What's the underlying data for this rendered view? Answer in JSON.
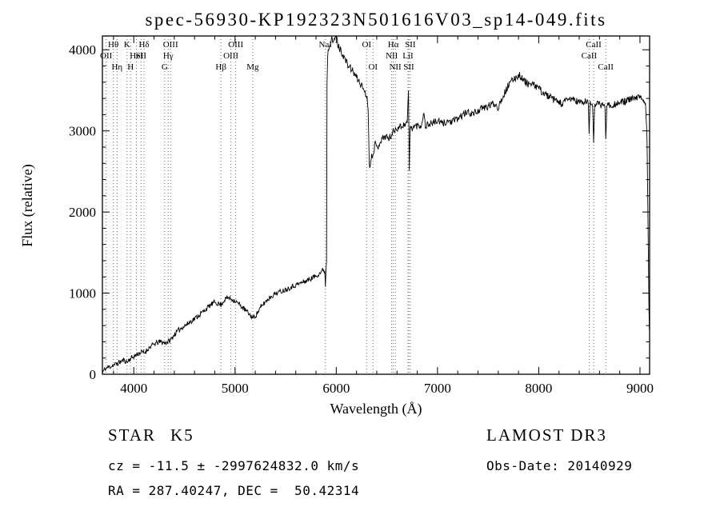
{
  "title": "spec-56930-KP192323N501616V03_sp14-049.fits",
  "chart_data": {
    "type": "line",
    "title": "spec-56930-KP192323N501616V03_sp14-049.fits",
    "xlabel": "Wavelength (Å)",
    "ylabel": "Flux (relative)",
    "xlim": [
      3690,
      9095
    ],
    "ylim": [
      0,
      4170
    ],
    "xticks": [
      4000,
      5000,
      6000,
      7000,
      8000,
      9000
    ],
    "yticks": [
      0,
      1000,
      2000,
      3000,
      4000
    ],
    "x_minor_step": 200,
    "y_minor_step": 200,
    "grid": false,
    "legend": "none",
    "series_color": "#000000",
    "line_marker_color": "#b5524a",
    "spectral_lines": [
      {
        "label": "OII",
        "wavelength": 3727,
        "row": 2
      },
      {
        "label": "Hθ",
        "wavelength": 3798,
        "row": 1
      },
      {
        "label": "Hη",
        "wavelength": 3835,
        "row": 3
      },
      {
        "label": "K",
        "wavelength": 3933,
        "row": 1
      },
      {
        "label": "H",
        "wavelength": 3968,
        "row": 3
      },
      {
        "label": "HeI",
        "wavelength": 4026,
        "row": 2
      },
      {
        "label": "SII",
        "wavelength": 4072,
        "row": 2
      },
      {
        "label": "Hδ",
        "wavelength": 4101,
        "row": 1
      },
      {
        "label": "G",
        "wavelength": 4305,
        "row": 3
      },
      {
        "label": "Hγ",
        "wavelength": 4340,
        "row": 2
      },
      {
        "label": "OIII",
        "wavelength": 4363,
        "row": 1
      },
      {
        "label": "Hβ",
        "wavelength": 4861,
        "row": 3
      },
      {
        "label": "OIII",
        "wavelength": 4959,
        "row": 2
      },
      {
        "label": "OIII",
        "wavelength": 5007,
        "row": 1
      },
      {
        "label": "Mg",
        "wavelength": 5175,
        "row": 3
      },
      {
        "label": "NaI",
        "wavelength": 5893,
        "row": 1
      },
      {
        "label": "OI",
        "wavelength": 6300,
        "row": 1
      },
      {
        "label": "OI",
        "wavelength": 6363,
        "row": 3
      },
      {
        "label": "NII",
        "wavelength": 6548,
        "row": 2
      },
      {
        "label": "Hα",
        "wavelength": 6563,
        "row": 1
      },
      {
        "label": "NII",
        "wavelength": 6583,
        "row": 3
      },
      {
        "label": "LiI",
        "wavelength": 6708,
        "row": 2
      },
      {
        "label": "SII",
        "wavelength": 6716,
        "row": 3
      },
      {
        "label": "SII",
        "wavelength": 6731,
        "row": 1
      },
      {
        "label": "CaII",
        "wavelength": 8498,
        "row": 2
      },
      {
        "label": "CaII",
        "wavelength": 8542,
        "row": 1
      },
      {
        "label": "CaII",
        "wavelength": 8662,
        "row": 3
      }
    ],
    "spectrum_anchors": [
      [
        3690,
        15
      ],
      [
        3700,
        40
      ],
      [
        3720,
        70
      ],
      [
        3750,
        90
      ],
      [
        3780,
        100
      ],
      [
        3800,
        115
      ],
      [
        3830,
        125
      ],
      [
        3860,
        150
      ],
      [
        3900,
        175
      ],
      [
        3933,
        150
      ],
      [
        3950,
        175
      ],
      [
        3970,
        195
      ],
      [
        4000,
        220
      ],
      [
        4030,
        245
      ],
      [
        4060,
        265
      ],
      [
        4090,
        275
      ],
      [
        4101,
        255
      ],
      [
        4130,
        300
      ],
      [
        4160,
        335
      ],
      [
        4200,
        370
      ],
      [
        4240,
        395
      ],
      [
        4270,
        400
      ],
      [
        4305,
        385
      ],
      [
        4340,
        405
      ],
      [
        4363,
        420
      ],
      [
        4400,
        490
      ],
      [
        4440,
        540
      ],
      [
        4480,
        580
      ],
      [
        4520,
        610
      ],
      [
        4560,
        650
      ],
      [
        4600,
        685
      ],
      [
        4650,
        735
      ],
      [
        4700,
        790
      ],
      [
        4750,
        845
      ],
      [
        4800,
        890
      ],
      [
        4861,
        855
      ],
      [
        4900,
        925
      ],
      [
        4930,
        945
      ],
      [
        4960,
        930
      ],
      [
        5000,
        905
      ],
      [
        5040,
        865
      ],
      [
        5080,
        815
      ],
      [
        5120,
        770
      ],
      [
        5160,
        715
      ],
      [
        5180,
        695
      ],
      [
        5210,
        735
      ],
      [
        5250,
        815
      ],
      [
        5300,
        895
      ],
      [
        5350,
        955
      ],
      [
        5400,
        995
      ],
      [
        5450,
        1020
      ],
      [
        5500,
        1045
      ],
      [
        5550,
        1075
      ],
      [
        5600,
        1100
      ],
      [
        5650,
        1125
      ],
      [
        5700,
        1150
      ],
      [
        5750,
        1180
      ],
      [
        5800,
        1215
      ],
      [
        5845,
        1255
      ],
      [
        5875,
        1295
      ],
      [
        5887,
        1260
      ],
      [
        5893,
        1090
      ],
      [
        5899,
        1320
      ],
      [
        5904,
        1380
      ],
      [
        5909,
        3600
      ],
      [
        5915,
        3950
      ],
      [
        5925,
        4020
      ],
      [
        5940,
        4100
      ],
      [
        5955,
        4180
      ],
      [
        5970,
        4060
      ],
      [
        5985,
        4150
      ],
      [
        6000,
        4220
      ],
      [
        6015,
        4060
      ],
      [
        6030,
        4020
      ],
      [
        6050,
        3980
      ],
      [
        6080,
        3900
      ],
      [
        6110,
        3820
      ],
      [
        6150,
        3760
      ],
      [
        6190,
        3680
      ],
      [
        6230,
        3600
      ],
      [
        6270,
        3520
      ],
      [
        6300,
        3430
      ],
      [
        6315,
        3300
      ],
      [
        6325,
        2650
      ],
      [
        6335,
        2530
      ],
      [
        6345,
        2680
      ],
      [
        6365,
        2740
      ],
      [
        6385,
        2840
      ],
      [
        6405,
        2790
      ],
      [
        6430,
        2860
      ],
      [
        6460,
        2910
      ],
      [
        6490,
        2940
      ],
      [
        6520,
        2900
      ],
      [
        6545,
        2950
      ],
      [
        6563,
        2990
      ],
      [
        6590,
        3030
      ],
      [
        6620,
        3050
      ],
      [
        6650,
        3060
      ],
      [
        6680,
        3090
      ],
      [
        6700,
        3100
      ],
      [
        6708,
        3300
      ],
      [
        6713,
        3530
      ],
      [
        6721,
        2520
      ],
      [
        6729,
        3030
      ],
      [
        6750,
        3040
      ],
      [
        6780,
        3060
      ],
      [
        6810,
        3070
      ],
      [
        6840,
        3060
      ],
      [
        6862,
        3230
      ],
      [
        6880,
        3070
      ],
      [
        6910,
        3080
      ],
      [
        6950,
        3100
      ],
      [
        7000,
        3120
      ],
      [
        7050,
        3090
      ],
      [
        7100,
        3120
      ],
      [
        7150,
        3110
      ],
      [
        7200,
        3150
      ],
      [
        7250,
        3200
      ],
      [
        7300,
        3230
      ],
      [
        7350,
        3210
      ],
      [
        7400,
        3250
      ],
      [
        7450,
        3280
      ],
      [
        7500,
        3300
      ],
      [
        7550,
        3340
      ],
      [
        7590,
        3310
      ],
      [
        7600,
        3280
      ],
      [
        7620,
        3360
      ],
      [
        7660,
        3460
      ],
      [
        7700,
        3560
      ],
      [
        7740,
        3620
      ],
      [
        7780,
        3670
      ],
      [
        7810,
        3690
      ],
      [
        7840,
        3640
      ],
      [
        7880,
        3590
      ],
      [
        7920,
        3570
      ],
      [
        7960,
        3560
      ],
      [
        8000,
        3530
      ],
      [
        8040,
        3470
      ],
      [
        8090,
        3430
      ],
      [
        8140,
        3390
      ],
      [
        8190,
        3360
      ],
      [
        8230,
        3330
      ],
      [
        8280,
        3380
      ],
      [
        8330,
        3400
      ],
      [
        8380,
        3360
      ],
      [
        8430,
        3350
      ],
      [
        8470,
        3360
      ],
      [
        8490,
        3350
      ],
      [
        8498,
        2980
      ],
      [
        8508,
        3340
      ],
      [
        8532,
        3330
      ],
      [
        8542,
        2890
      ],
      [
        8552,
        3320
      ],
      [
        8590,
        3330
      ],
      [
        8630,
        3320
      ],
      [
        8654,
        3330
      ],
      [
        8662,
        2860
      ],
      [
        8672,
        3320
      ],
      [
        8710,
        3320
      ],
      [
        8750,
        3330
      ],
      [
        8800,
        3345
      ],
      [
        8850,
        3365
      ],
      [
        8900,
        3385
      ],
      [
        8950,
        3400
      ],
      [
        9000,
        3415
      ],
      [
        9030,
        3390
      ],
      [
        9055,
        3330
      ],
      [
        9070,
        2900
      ],
      [
        9080,
        1800
      ],
      [
        9088,
        900
      ],
      [
        9093,
        550
      ]
    ],
    "noise_segments": [
      {
        "from": 3690,
        "to": 5904,
        "amp": 32
      },
      {
        "from": 5904,
        "to": 9000,
        "amp": 45
      },
      {
        "from": 9000,
        "to": 9093,
        "amp": 28
      }
    ],
    "noise_seed": 11,
    "sample_step": 5
  },
  "annotations": {
    "class_label": "STAR",
    "subclass": "K5",
    "survey": "LAMOST DR3",
    "cz_line": "cz = -11.5 ± -2997624832.0 km/s",
    "obs_date": "Obs-Date: 20140929",
    "ra_dec": "RA = 287.40247, DEC =  50.42314"
  }
}
